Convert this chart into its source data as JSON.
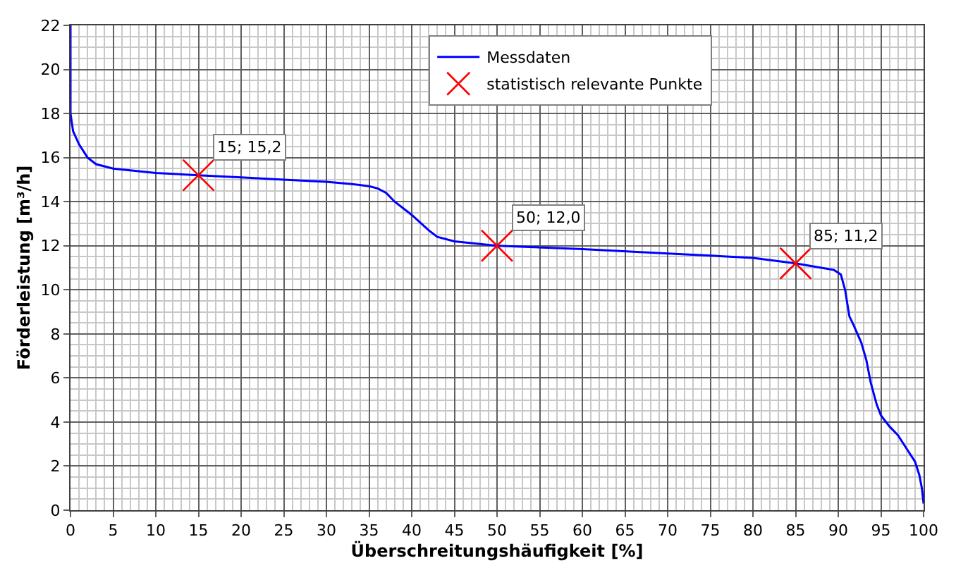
{
  "chart_data": {
    "type": "line",
    "xlabel": "Überschreitungshäufigkeit [%]",
    "ylabel": "Förderleistung [m³/h]",
    "series": [
      {
        "name": "Messdaten",
        "color": "#0000ff",
        "marker": "none",
        "x": [
          0,
          0,
          0.3,
          1,
          2,
          3,
          5,
          10,
          15,
          20,
          25,
          30,
          33,
          35,
          36,
          37,
          38,
          40,
          42,
          43,
          45,
          50,
          60,
          70,
          80,
          85,
          88,
          89.5,
          90.3,
          90.8,
          91.3,
          91.8,
          92.7,
          93.3,
          93.8,
          94.5,
          95,
          96,
          97,
          98,
          99,
          99.5,
          99.8,
          100
        ],
        "values": [
          22,
          18,
          17.2,
          16.6,
          16,
          15.7,
          15.5,
          15.3,
          15.2,
          15.1,
          15,
          14.9,
          14.8,
          14.7,
          14.6,
          14.4,
          14.0,
          13.4,
          12.7,
          12.4,
          12.2,
          12.0,
          11.85,
          11.65,
          11.45,
          11.2,
          11.0,
          10.9,
          10.7,
          10.0,
          8.8,
          8.4,
          7.6,
          6.8,
          5.8,
          4.8,
          4.3,
          3.8,
          3.4,
          2.8,
          2.2,
          1.6,
          1.0,
          0.3
        ]
      },
      {
        "name": "statistisch relevante Punkte",
        "type": "scatter",
        "color": "#ff0000",
        "marker": "cross",
        "x": [
          15,
          50,
          85
        ],
        "values": [
          15.2,
          12.0,
          11.2
        ]
      }
    ],
    "annotations": [
      {
        "text": "15; 15,2",
        "x": 15,
        "y": 15.2
      },
      {
        "text": "50; 12,0",
        "x": 50,
        "y": 12.0
      },
      {
        "text": "85; 11,2",
        "x": 85,
        "y": 11.2
      }
    ],
    "xlim": [
      0,
      100
    ],
    "xticks": [
      0,
      5,
      10,
      15,
      20,
      25,
      30,
      35,
      40,
      45,
      50,
      55,
      60,
      65,
      70,
      75,
      80,
      85,
      90,
      95,
      100
    ],
    "ylim": [
      0,
      22
    ],
    "yticks": [
      0,
      2,
      4,
      6,
      8,
      10,
      12,
      14,
      16,
      18,
      20,
      22
    ],
    "grid": true,
    "legend": "top"
  }
}
